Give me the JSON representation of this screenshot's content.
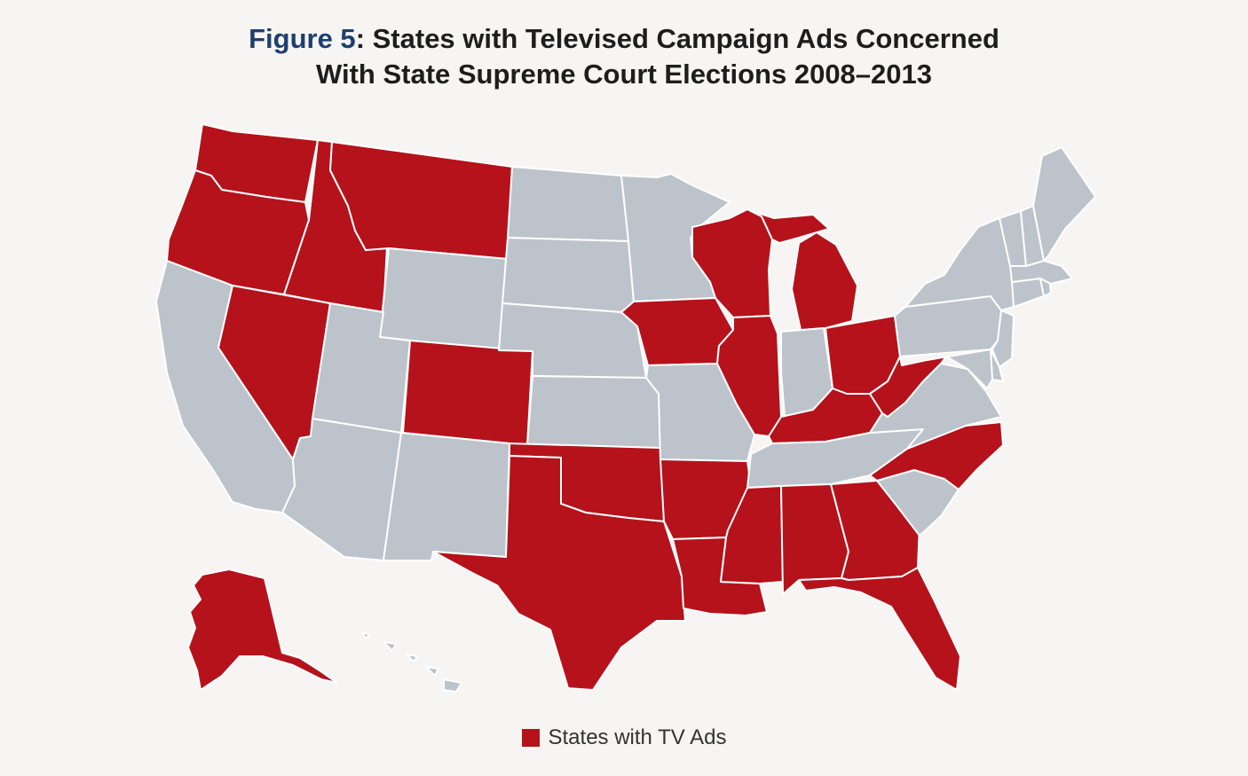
{
  "title": {
    "label": "Figure 5",
    "line1_rest": ": States with Televised Campaign Ads Concerned",
    "line2": "With State Supreme Court Elections 2008–2013"
  },
  "legend": {
    "label": "States with TV Ads"
  },
  "colors": {
    "with_ads": "#b5121b",
    "without_ads": "#bcc3cb",
    "border": "#ffffff",
    "background": "#f6f5f4"
  },
  "states_with_tv_ads": [
    "WA",
    "OR",
    "ID",
    "MT",
    "NV",
    "CO",
    "TX",
    "OK",
    "AR",
    "LA",
    "MS",
    "AL",
    "GA",
    "FL",
    "NC",
    "WV",
    "KY",
    "OH",
    "MI",
    "WI",
    "IA",
    "IL",
    "AK"
  ],
  "states_without_tv_ads": [
    "CA",
    "UT",
    "AZ",
    "NM",
    "WY",
    "ND",
    "SD",
    "NE",
    "KS",
    "MN",
    "MO",
    "IN",
    "TN",
    "SC",
    "VA",
    "PA",
    "NY",
    "VT",
    "NH",
    "ME",
    "MA",
    "CT",
    "RI",
    "NJ",
    "DE",
    "MD",
    "HI"
  ]
}
